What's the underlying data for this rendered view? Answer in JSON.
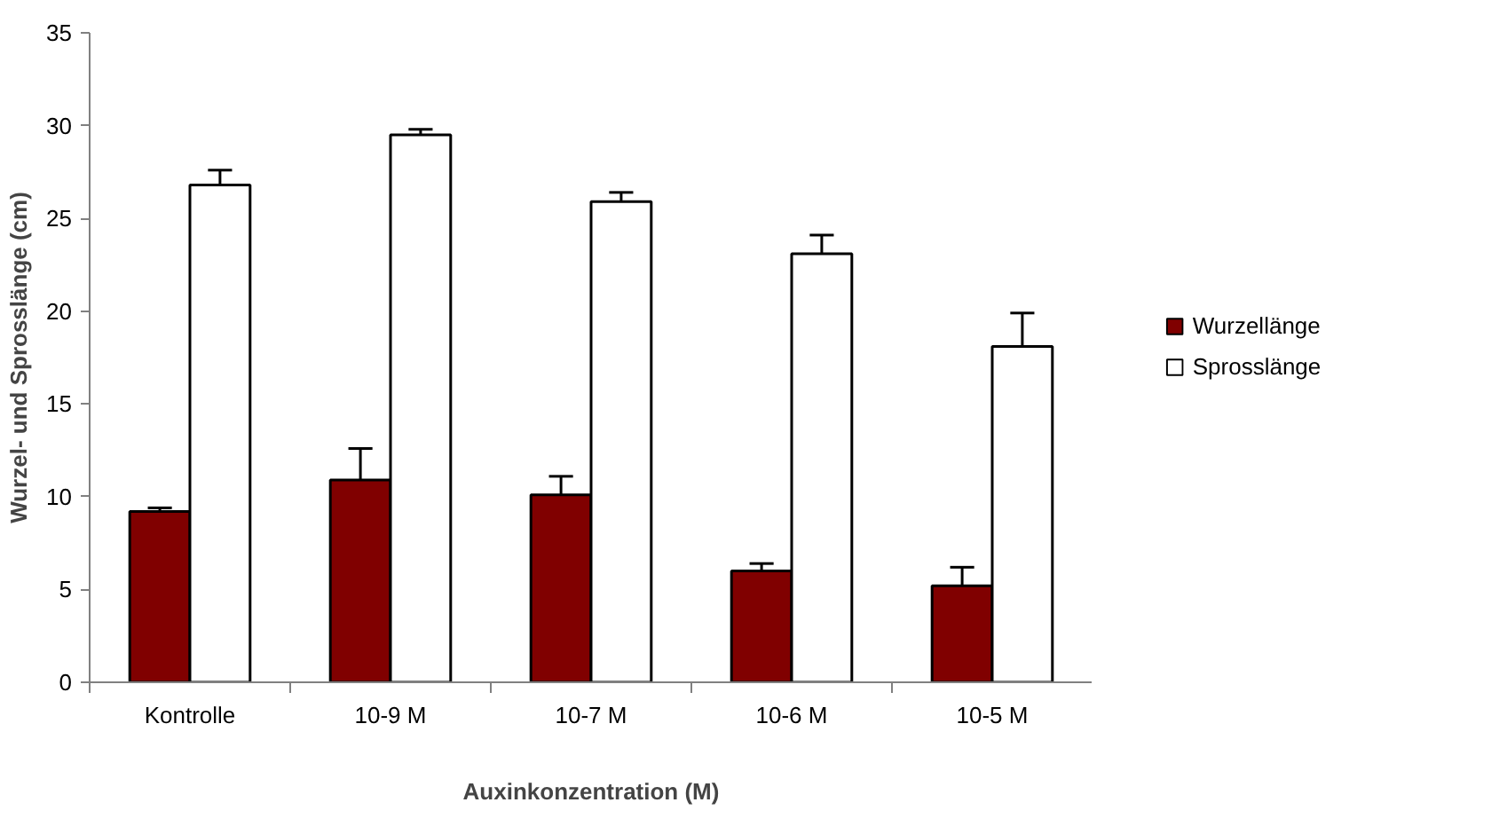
{
  "chart_data": {
    "type": "bar",
    "xlabel": "Auxinkonzentration (M)",
    "ylabel": "Wurzel- und Sprosslänge (cm)",
    "categories": [
      "Kontrolle",
      "10-9 M",
      "10-7 M",
      "10-6 M",
      "10-5 M"
    ],
    "series": [
      {
        "name": "Wurzellänge",
        "color": "#800000",
        "values": [
          9.2,
          10.9,
          10.1,
          6.0,
          5.2
        ],
        "errors": [
          [
            9.2,
            9.4
          ],
          [
            10.9,
            12.6
          ],
          [
            10.1,
            11.1
          ],
          [
            6.0,
            6.4
          ],
          [
            5.2,
            6.2
          ]
        ]
      },
      {
        "name": "Sprosslänge",
        "color": "#ffffff",
        "values": [
          26.8,
          29.5,
          25.9,
          23.1,
          18.1
        ],
        "errors": [
          [
            26.8,
            27.6
          ],
          [
            29.5,
            29.8
          ],
          [
            25.9,
            26.4
          ],
          [
            23.1,
            24.1
          ],
          [
            18.1,
            19.9
          ]
        ]
      }
    ],
    "ylim": [
      0,
      35
    ],
    "yticks": [
      0,
      5,
      10,
      15,
      20,
      25,
      30,
      35
    ],
    "grid": false,
    "legend": "right"
  }
}
